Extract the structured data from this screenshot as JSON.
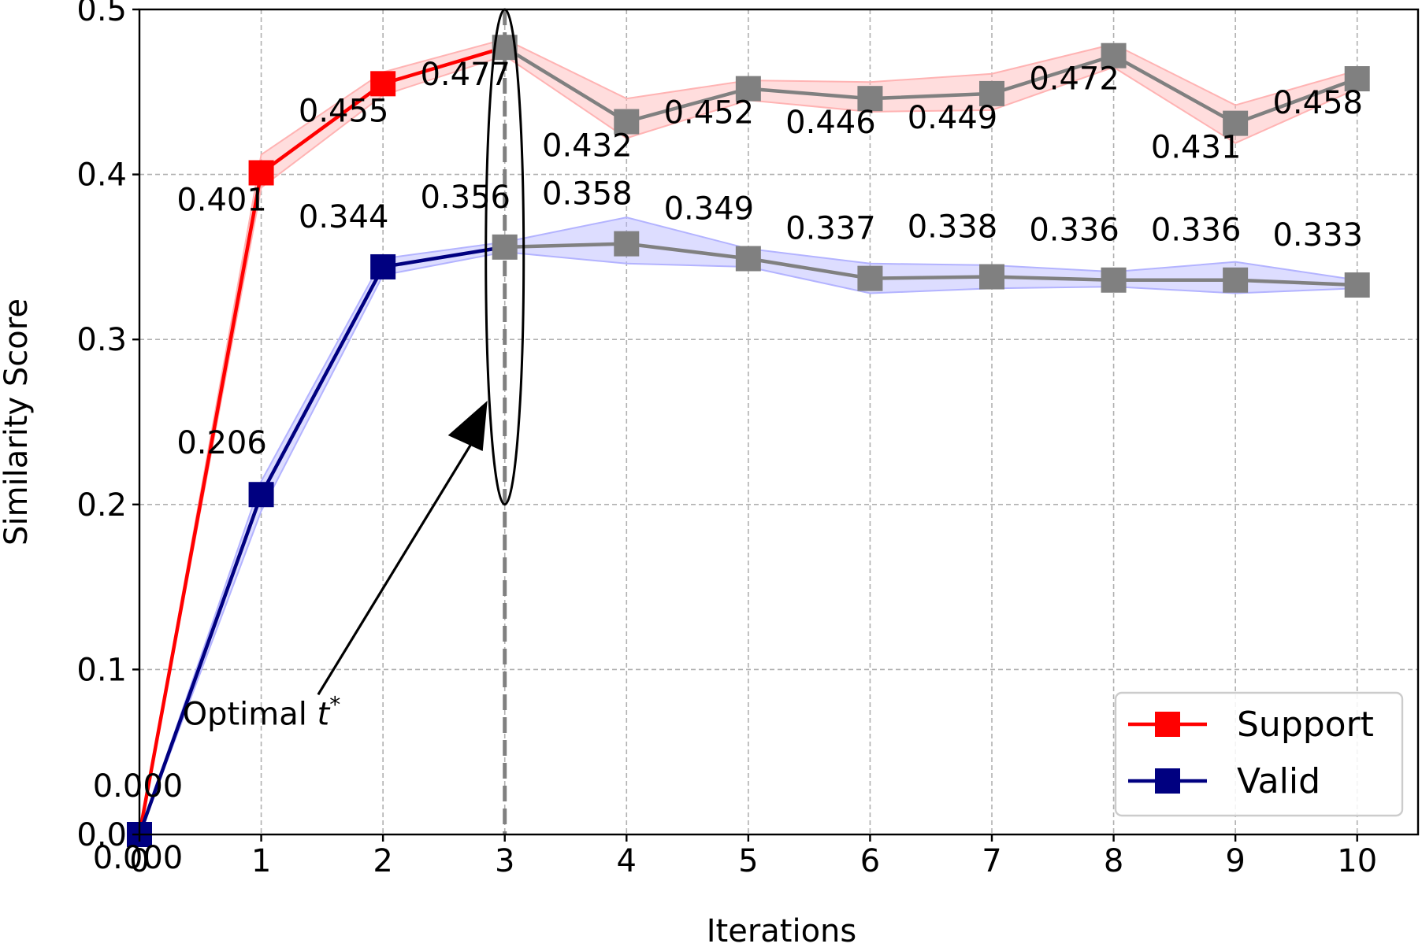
{
  "chart_data": {
    "type": "line",
    "xlabel": "Iterations",
    "ylabel": "Similarity Score",
    "xlim": [
      0,
      10.5
    ],
    "ylim": [
      0,
      0.5
    ],
    "x_ticks": [
      "0",
      "1",
      "2",
      "3",
      "4",
      "5",
      "6",
      "7",
      "8",
      "9",
      "10"
    ],
    "y_ticks": [
      "0.0",
      "0.1",
      "0.2",
      "0.3",
      "0.4",
      "0.5"
    ],
    "grid": true,
    "legend_position": "bottom-right",
    "optimal_iteration": 3,
    "annotation": {
      "text": "Optimal ",
      "math_symbol": "t",
      "math_superscript": "*",
      "x": 1.5,
      "y": 0.08
    },
    "after_optimal_color": "#808080",
    "series": [
      {
        "name": "Support",
        "color": "#ff0000",
        "band_color": "#ffb3b3",
        "x": [
          0,
          1,
          2,
          3,
          4,
          5,
          6,
          7,
          8,
          9,
          10
        ],
        "y": [
          0.0,
          0.401,
          0.455,
          0.477,
          0.432,
          0.452,
          0.446,
          0.449,
          0.472,
          0.431,
          0.458
        ],
        "labels": [
          "0.000",
          "0.401",
          "0.455",
          "0.477",
          "0.432",
          "0.452",
          "0.446",
          "0.449",
          "0.472",
          "0.431",
          "0.458"
        ],
        "band_low": [
          0.0,
          0.392,
          0.448,
          0.472,
          0.422,
          0.445,
          0.438,
          0.439,
          0.465,
          0.419,
          0.452
        ],
        "band_high": [
          0.0,
          0.412,
          0.462,
          0.482,
          0.446,
          0.457,
          0.456,
          0.461,
          0.479,
          0.442,
          0.463
        ]
      },
      {
        "name": "Valid",
        "color": "#000080",
        "band_color": "#b3b3ff",
        "x": [
          0,
          1,
          2,
          3,
          4,
          5,
          6,
          7,
          8,
          9,
          10
        ],
        "y": [
          0.0,
          0.206,
          0.344,
          0.356,
          0.358,
          0.349,
          0.337,
          0.338,
          0.336,
          0.336,
          0.333
        ],
        "labels": [
          "0.000",
          "0.206",
          "0.344",
          "0.356",
          "0.358",
          "0.349",
          "0.337",
          "0.338",
          "0.336",
          "0.336",
          "0.333"
        ],
        "band_low": [
          0.0,
          0.196,
          0.339,
          0.353,
          0.346,
          0.344,
          0.328,
          0.331,
          0.332,
          0.328,
          0.331
        ],
        "band_high": [
          0.0,
          0.214,
          0.349,
          0.359,
          0.374,
          0.355,
          0.346,
          0.345,
          0.341,
          0.347,
          0.336
        ]
      }
    ]
  }
}
